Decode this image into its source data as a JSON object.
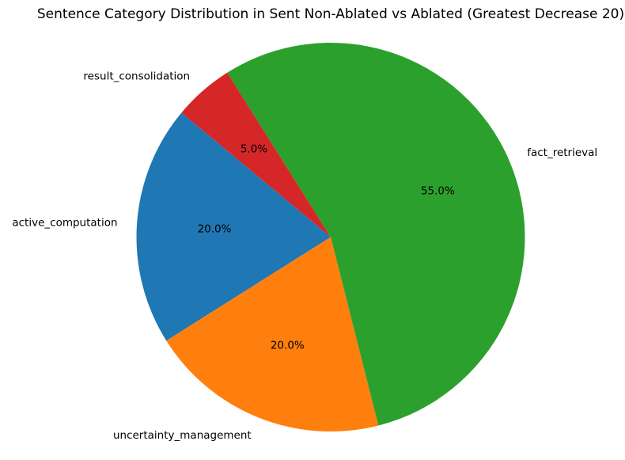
{
  "chart_data": {
    "type": "pie",
    "title": "Sentence Category Distribution in Sent Non-Ablated vs Ablated (Greatest Decrease 20)",
    "slices": [
      {
        "label": "fact_retrieval",
        "value": 55.0,
        "pct_label": "55.0%",
        "color": "#2ca02c"
      },
      {
        "label": "result_consolidation",
        "value": 5.0,
        "pct_label": "5.0%",
        "color": "#d62728"
      },
      {
        "label": "active_computation",
        "value": 20.0,
        "pct_label": "20.0%",
        "color": "#1f77b4"
      },
      {
        "label": "uncertainty_management",
        "value": 20.0,
        "pct_label": "20.0%",
        "color": "#ff7f0e"
      }
    ],
    "start_angle_deg": -75.8,
    "direction": "counterclockwise",
    "label_distance": 1.1,
    "pct_distance": 0.6,
    "legend": "none",
    "background": "#ffffff",
    "text_color": "#000000"
  }
}
